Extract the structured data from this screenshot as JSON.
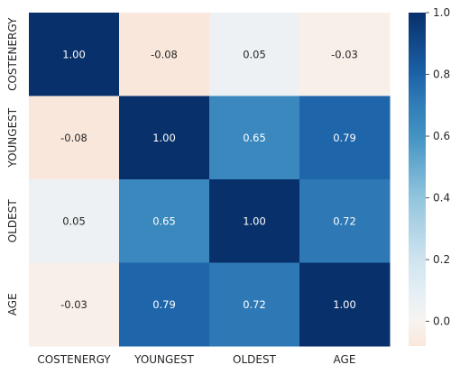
{
  "chart_data": {
    "type": "heatmap",
    "title": "",
    "xlabel": "",
    "ylabel": "",
    "x_labels": [
      "COSTENERGY",
      "YOUNGEST",
      "OLDEST",
      "AGE"
    ],
    "y_labels": [
      "COSTENERGY",
      "YOUNGEST",
      "OLDEST",
      "AGE"
    ],
    "values": [
      [
        1.0,
        -0.08,
        0.05,
        -0.03
      ],
      [
        -0.08,
        1.0,
        0.65,
        0.79
      ],
      [
        0.05,
        0.65,
        1.0,
        0.72
      ],
      [
        -0.03,
        0.79,
        0.72,
        1.0
      ]
    ],
    "cell_labels": [
      [
        "1.00",
        "-0.08",
        "0.05",
        "-0.03"
      ],
      [
        "-0.08",
        "1.00",
        "0.65",
        "0.79"
      ],
      [
        "0.05",
        "0.65",
        "1.00",
        "0.72"
      ],
      [
        "-0.03",
        "0.79",
        "0.72",
        "1.00"
      ]
    ],
    "colorbar": {
      "vmin": -0.08,
      "vmax": 1.0,
      "ticks": [
        "0.0",
        "0.2",
        "0.4",
        "0.6",
        "0.8",
        "1.0"
      ],
      "colormap": "RdBu-centered",
      "stops": [
        {
          "v": -0.08,
          "color": "#fae7dc"
        },
        {
          "v": 0.0,
          "color": "#f8f3f0"
        },
        {
          "v": 0.08,
          "color": "#e7f0f5"
        },
        {
          "v": 0.2,
          "color": "#cfe4ef"
        },
        {
          "v": 0.4,
          "color": "#92c5de"
        },
        {
          "v": 0.6,
          "color": "#4393c3"
        },
        {
          "v": 0.72,
          "color": "#2e79b5"
        },
        {
          "v": 0.8,
          "color": "#1c62a8"
        },
        {
          "v": 1.0,
          "color": "#08306b"
        }
      ]
    },
    "grid": false,
    "legend": "colorbar-right"
  }
}
